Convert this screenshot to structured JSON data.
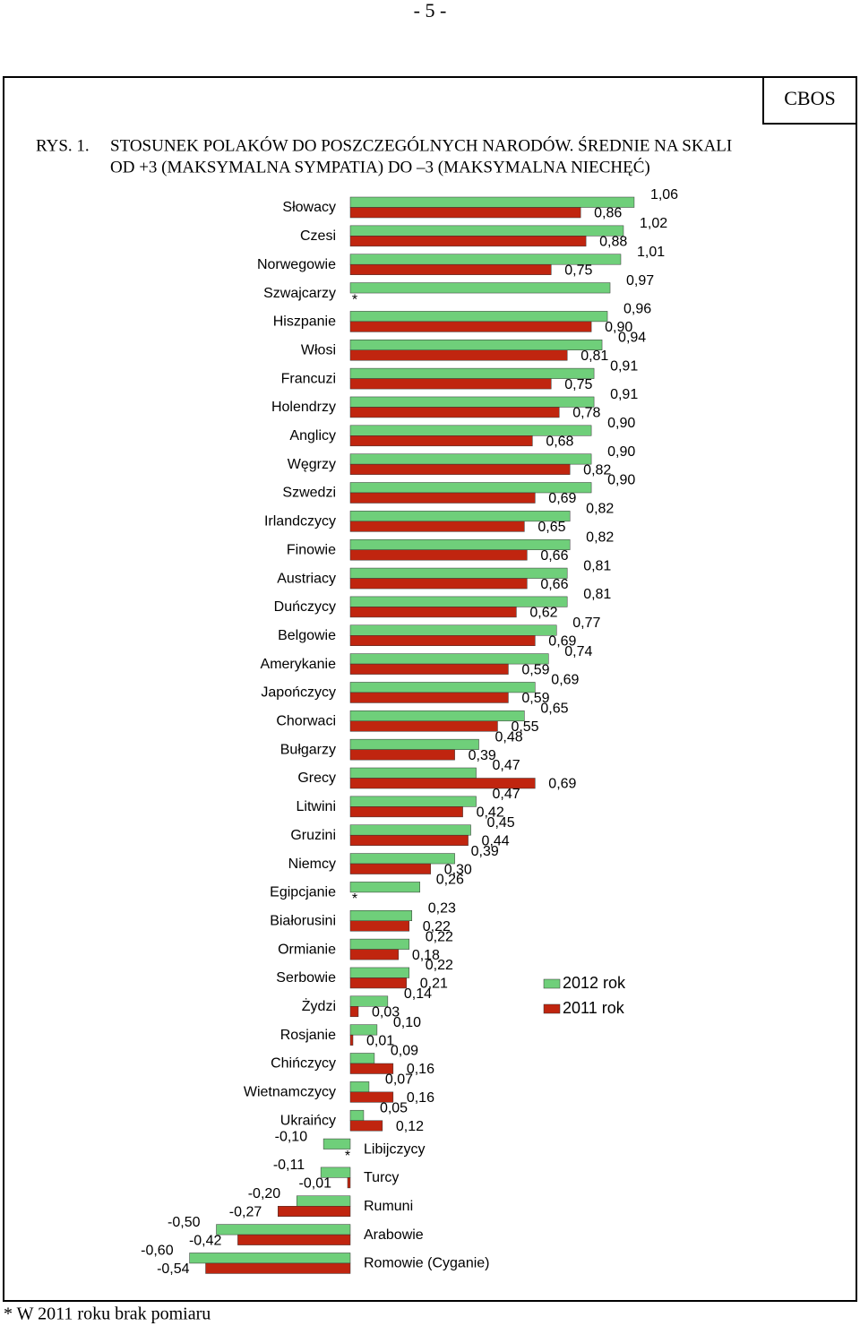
{
  "page": {
    "number": "- 5 -",
    "publisher": "CBOS"
  },
  "chart_data": {
    "type": "bar",
    "orientation": "horizontal",
    "figure_label": "RYS. 1.",
    "title": [
      "STOSUNEK POLAKÓW DO POSZCZEGÓLNYCH NARODÓW. ŚREDNIE NA SKALI",
      "OD +3 (MAKSYMALNA SYMPATIA) DO –3 (MAKSYMALNA NIECHĘĆ)"
    ],
    "footnote": "* W 2011 roku brak pomiaru",
    "missing_marker": "*",
    "xlim": [
      -0.6,
      1.1
    ],
    "grid": false,
    "legend": "right",
    "categories": [
      "Słowacy",
      "Czesi",
      "Norwegowie",
      "Szwajcarzy",
      "Hiszpanie",
      "Włosi",
      "Francuzi",
      "Holendrzy",
      "Anglicy",
      "Węgrzy",
      "Szwedzi",
      "Irlandczycy",
      "Finowie",
      "Austriacy",
      "Duńczycy",
      "Belgowie",
      "Amerykanie",
      "Japończycy",
      "Chorwaci",
      "Bułgarzy",
      "Grecy",
      "Litwini",
      "Gruzini",
      "Niemcy",
      "Egipcjanie",
      "Białorusini",
      "Ormianie",
      "Serbowie",
      "Żydzi",
      "Rosjanie",
      "Chińczycy",
      "Wietnamczycy",
      "Ukraińcy",
      "Libijczycy",
      "Turcy",
      "Rumuni",
      "Arabowie",
      "Romowie (Cyganie)"
    ],
    "series": [
      {
        "name": "2012 rok",
        "color": "#6fcf7a",
        "values": [
          1.06,
          1.02,
          1.01,
          0.97,
          0.96,
          0.94,
          0.91,
          0.91,
          0.9,
          0.9,
          0.9,
          0.82,
          0.82,
          0.81,
          0.81,
          0.77,
          0.74,
          0.69,
          0.65,
          0.48,
          0.47,
          0.47,
          0.45,
          0.39,
          0.26,
          0.23,
          0.22,
          0.22,
          0.14,
          0.1,
          0.09,
          0.07,
          0.05,
          -0.1,
          -0.11,
          -0.2,
          -0.5,
          -0.6
        ],
        "value_labels": [
          "1,06",
          "1,02",
          "1,01",
          "0,97",
          "0,96",
          "0,94",
          "0,91",
          "0,91",
          "0,90",
          "0,90",
          "0,90",
          "0,82",
          "0,82",
          "0,81",
          "0,81",
          "0,77",
          "0,74",
          "0,69",
          "0,65",
          "0,48",
          "0,47",
          "0,47",
          "0,45",
          "0,39",
          "0,26",
          "0,23",
          "0,22",
          "0,22",
          "0,14",
          "0,10",
          "0,09",
          "0,07",
          "0,05",
          "-0,10",
          "-0,11",
          "-0,20",
          "-0,50",
          "-0,60"
        ]
      },
      {
        "name": "2011 rok",
        "color": "#c0250f",
        "values": [
          0.86,
          0.88,
          0.75,
          null,
          0.9,
          0.81,
          0.75,
          0.78,
          0.68,
          0.82,
          0.69,
          0.65,
          0.66,
          0.66,
          0.62,
          0.69,
          0.59,
          0.59,
          0.55,
          0.39,
          0.69,
          0.42,
          0.44,
          0.3,
          null,
          0.22,
          0.18,
          0.21,
          0.03,
          0.01,
          0.16,
          0.16,
          0.12,
          null,
          -0.01,
          -0.27,
          -0.42,
          -0.54
        ],
        "value_labels": [
          "0,86",
          "0,88",
          "0,75",
          null,
          "0,90",
          "0,81",
          "0,75",
          "0,78",
          "0,68",
          "0,82",
          "0,69",
          "0,65",
          "0,66",
          "0,66",
          "0,62",
          "0,69",
          "0,59",
          "0,59",
          "0,55",
          "0,39",
          "0,69",
          "0,42",
          "0,44",
          "0,30",
          null,
          "0,22",
          "0,18",
          "0,21",
          "0,03",
          "0,01",
          "0,16",
          "0,16",
          "0,12",
          null,
          "-0,01",
          "-0,27",
          "-0,42",
          "-0,54"
        ]
      }
    ]
  }
}
